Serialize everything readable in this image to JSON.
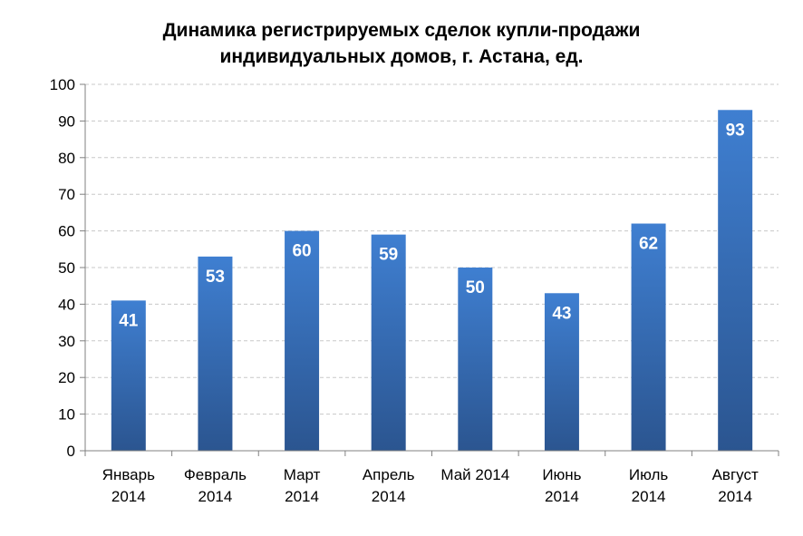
{
  "chart_data": {
    "type": "bar",
    "title": [
      "Динамика регистрируемых  сделок купли-продажи",
      "индивидуальных  домов, г. Астана,  ед."
    ],
    "categories": [
      [
        "Январь",
        "2014"
      ],
      [
        "Февраль",
        "2014"
      ],
      [
        "Март",
        "2014"
      ],
      [
        "Апрель",
        "2014"
      ],
      [
        "Май 2014"
      ],
      [
        "Июнь",
        "2014"
      ],
      [
        "Июль",
        "2014"
      ],
      [
        "Август",
        "2014"
      ]
    ],
    "values": [
      41,
      53,
      60,
      59,
      50,
      43,
      62,
      93
    ],
    "data_labels": [
      "41",
      "53",
      "60",
      "59",
      "50",
      "43",
      "62",
      "93"
    ],
    "yticks": [
      "0",
      "10",
      "20",
      "30",
      "40",
      "50",
      "60",
      "70",
      "80",
      "90",
      "100"
    ],
    "ylim": [
      0,
      100
    ],
    "xlabel": "",
    "ylabel": "",
    "grid": true,
    "legend": "none",
    "colors": {
      "bar_top": "#3F7FD1",
      "bar_bottom": "#2B5590",
      "gridline": "#C8C8C8",
      "axis": "#808080",
      "label_text": "#FFFFFF"
    }
  }
}
